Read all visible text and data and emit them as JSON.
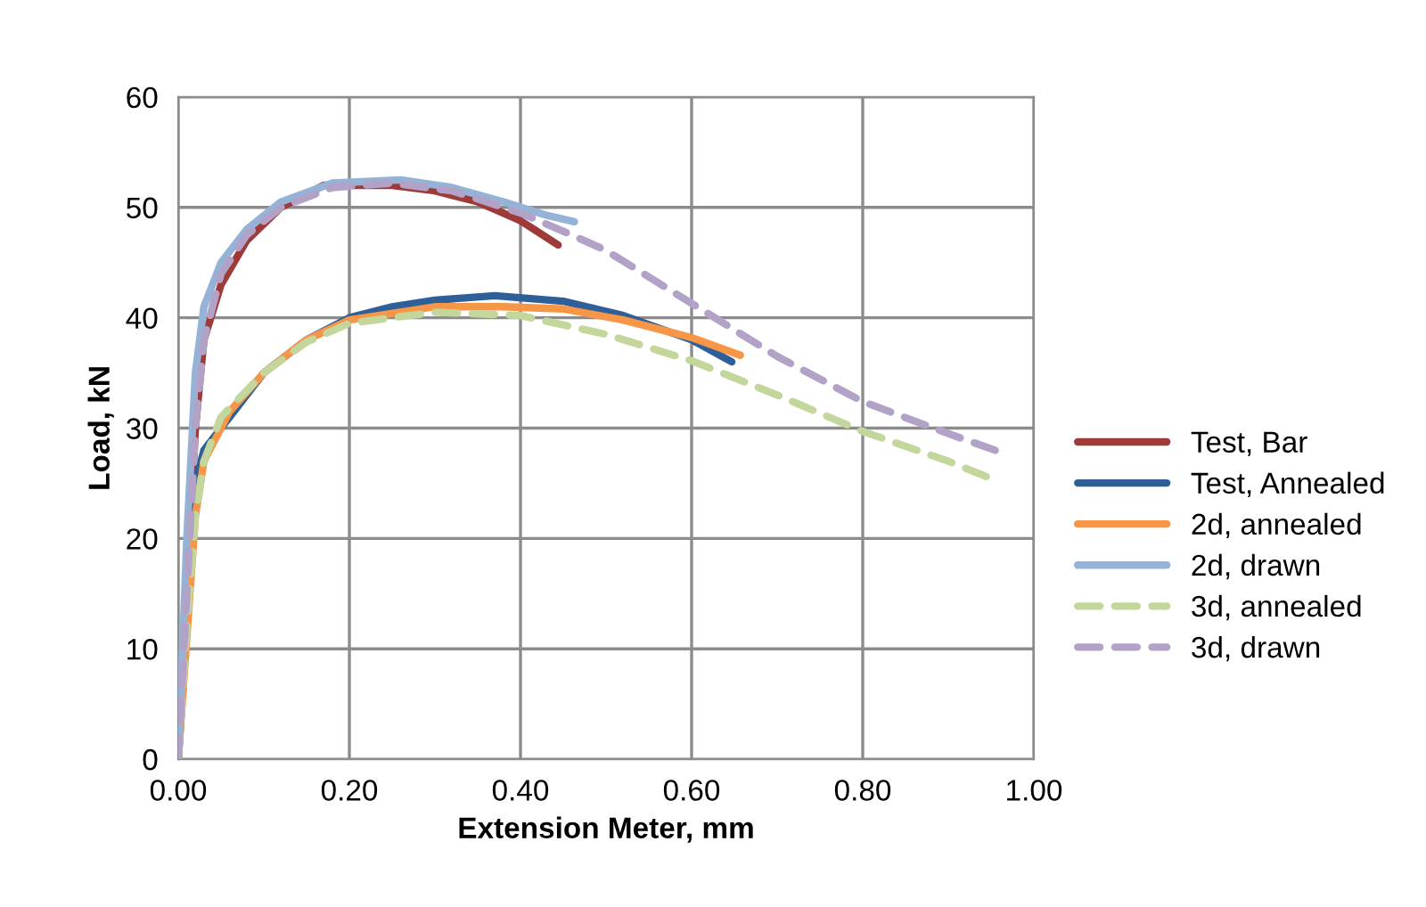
{
  "chart_data": {
    "type": "line",
    "xlabel": "Extension Meter, mm",
    "ylabel": "Load, kN",
    "xlim": [
      0,
      1
    ],
    "ylim": [
      0,
      60
    ],
    "xticks": [
      {
        "value": 0,
        "label": "0.00"
      },
      {
        "value": 0.2,
        "label": "0.20"
      },
      {
        "value": 0.4,
        "label": "0.40"
      },
      {
        "value": 0.6,
        "label": "0.60"
      },
      {
        "value": 0.8,
        "label": "0.80"
      },
      {
        "value": 1,
        "label": "1.00"
      }
    ],
    "yticks": [
      0,
      10,
      20,
      30,
      40,
      50,
      60
    ],
    "grid": true,
    "legend": "right",
    "marker": "none",
    "series": [
      {
        "name": "Test, Bar",
        "color": "#9e3a38",
        "line_style": "solid",
        "x": [
          0,
          0.01,
          0.02,
          0.03,
          0.05,
          0.08,
          0.12,
          0.17,
          0.25,
          0.3,
          0.35,
          0.4,
          0.444
        ],
        "values": [
          0,
          15,
          30,
          38,
          43,
          47,
          50,
          52,
          52,
          51.5,
          50.5,
          48.8,
          46.6
        ]
      },
      {
        "name": "Test, Annealed",
        "color": "#2e5f98",
        "line_style": "solid",
        "x": [
          0,
          0.01,
          0.02,
          0.03,
          0.06,
          0.1,
          0.15,
          0.2,
          0.25,
          0.3,
          0.37,
          0.45,
          0.52,
          0.6,
          0.647
        ],
        "values": [
          0,
          12,
          25,
          28,
          31,
          35,
          38,
          40,
          41,
          41.6,
          42,
          41.5,
          40.2,
          38,
          36
        ]
      },
      {
        "name": "2d, annealed",
        "color": "#f79646",
        "line_style": "solid",
        "x": [
          0,
          0.01,
          0.02,
          0.03,
          0.06,
          0.1,
          0.15,
          0.2,
          0.3,
          0.38,
          0.45,
          0.52,
          0.6,
          0.657
        ],
        "values": [
          0,
          11,
          22,
          27,
          31.5,
          35,
          38,
          39.8,
          41,
          41,
          40.8,
          39.8,
          38.2,
          36.6
        ]
      },
      {
        "name": "2d, drawn",
        "color": "#95b3d7",
        "line_style": "solid",
        "x": [
          0,
          0.01,
          0.02,
          0.03,
          0.05,
          0.08,
          0.12,
          0.18,
          0.26,
          0.32,
          0.38,
          0.43,
          0.463
        ],
        "values": [
          0,
          20,
          35,
          41,
          45,
          48,
          50.5,
          52.2,
          52.5,
          51.8,
          50.5,
          49.3,
          48.7
        ]
      },
      {
        "name": "3d, annealed",
        "color": "#c3d69b",
        "line_style": "dashed",
        "x": [
          0,
          0.01,
          0.02,
          0.03,
          0.05,
          0.1,
          0.15,
          0.2,
          0.3,
          0.4,
          0.5,
          0.6,
          0.7,
          0.8,
          0.9,
          0.954
        ],
        "values": [
          0,
          12,
          22,
          27,
          31,
          35,
          37.8,
          39.5,
          40.5,
          40.2,
          38.5,
          36.1,
          33,
          29.7,
          27,
          25.3
        ]
      },
      {
        "name": "3d, drawn",
        "color": "#b3a2c7",
        "line_style": "dashed",
        "x": [
          0,
          0.01,
          0.02,
          0.03,
          0.05,
          0.08,
          0.12,
          0.18,
          0.25,
          0.32,
          0.4,
          0.46,
          0.5,
          0.6,
          0.7,
          0.8,
          0.9,
          0.958
        ],
        "values": [
          0,
          15,
          30,
          38,
          44,
          47.5,
          50,
          51.8,
          52.2,
          51.5,
          49.5,
          47.5,
          46.1,
          41.3,
          36.5,
          32.4,
          29.5,
          27.9
        ]
      }
    ]
  }
}
